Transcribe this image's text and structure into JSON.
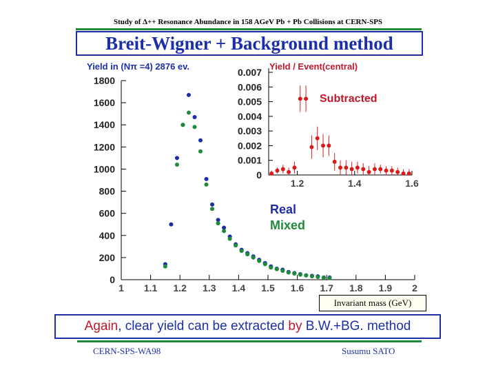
{
  "slide": {
    "top_title": "Study of Δ++ Resonance Abundance in 158 AGeV Pb + Pb Collisions at CERN-SPS",
    "headline": "Breit-Wigner + Background method",
    "xaxis_label": "Invariant mass (GeV)",
    "conclusion_red_1": "Again",
    "conclusion_blue_1": ", clear yield can be extracted ",
    "conclusion_red_2": "by",
    "conclusion_blue_2": " B.W.+BG. method",
    "footer_left": "CERN-SPS-WA98",
    "footer_right": "Susumu  SATO"
  },
  "colors": {
    "accent_blue": "#1c2fa8",
    "accent_red": "#c0182a",
    "rule_green": "#1f8a3a",
    "real_series": "#1c2fa8",
    "mixed_series": "#1f8a3a",
    "subtracted_series": "#d81c1c"
  },
  "chart_data": [
    {
      "type": "scatter",
      "title": "Yield in (Nπ =4) 2876 ev.",
      "xlim": [
        1,
        2
      ],
      "ylim": [
        0,
        1800
      ],
      "x_ticks": [
        1,
        1.1,
        1.2,
        1.3,
        1.4,
        1.5,
        1.6,
        1.7,
        1.8,
        1.9,
        2
      ],
      "x_tick_labels": [
        "1",
        "1.1",
        "1.2",
        "1.3",
        "1.4",
        "1.5",
        "1.6",
        "1.7",
        "1.8",
        "1.9",
        "2"
      ],
      "y_ticks": [
        0,
        200,
        400,
        600,
        800,
        1000,
        1200,
        1400,
        1600,
        1800
      ],
      "y_tick_labels": [
        "0",
        "200",
        "400",
        "600",
        "800",
        "1000",
        "1200",
        "1400",
        "1600",
        "1800"
      ],
      "legend_placement": "center-right",
      "series": [
        {
          "name": "Real",
          "x": [
            1.15,
            1.17,
            1.19,
            1.21,
            1.23,
            1.25,
            1.27,
            1.29,
            1.31,
            1.33,
            1.35,
            1.37,
            1.39,
            1.41,
            1.43,
            1.45,
            1.47,
            1.49,
            1.51,
            1.53,
            1.55,
            1.57,
            1.59,
            1.61,
            1.63,
            1.65,
            1.67,
            1.69,
            1.71
          ],
          "y": [
            140,
            500,
            1100,
            1400,
            1670,
            1470,
            1260,
            910,
            680,
            540,
            470,
            390,
            320,
            270,
            240,
            210,
            180,
            150,
            120,
            100,
            90,
            70,
            60,
            50,
            40,
            35,
            30,
            20,
            20
          ]
        },
        {
          "name": "Mixed",
          "x": [
            1.15,
            1.19,
            1.21,
            1.23,
            1.25,
            1.27,
            1.29,
            1.31,
            1.33,
            1.35,
            1.37,
            1.39,
            1.41,
            1.43,
            1.45,
            1.47,
            1.49,
            1.51,
            1.53,
            1.55,
            1.57,
            1.59,
            1.61,
            1.63,
            1.65,
            1.67,
            1.69,
            1.71
          ],
          "y": [
            120,
            1040,
            1400,
            1510,
            1380,
            1160,
            860,
            640,
            510,
            440,
            370,
            310,
            260,
            230,
            200,
            170,
            140,
            110,
            95,
            80,
            65,
            55,
            45,
            38,
            30,
            25,
            18,
            15
          ]
        }
      ]
    },
    {
      "type": "scatter",
      "title": "Yield / Event(central)",
      "annotation": "Subtracted",
      "xlim": [
        1.1,
        1.6
      ],
      "ylim": [
        0,
        0.007
      ],
      "x_ticks": [
        1.2,
        1.4,
        1.6
      ],
      "x_tick_labels": [
        "1.2",
        "1.4",
        "1.6"
      ],
      "y_ticks": [
        0,
        0.001,
        0.002,
        0.003,
        0.004,
        0.005,
        0.006,
        0.007
      ],
      "y_tick_labels": [
        "0",
        "0.001",
        "0.002",
        "0.003",
        "0.004",
        "0.005",
        "0.006",
        "0.007"
      ],
      "series": [
        {
          "name": "Subtracted",
          "x": [
            1.11,
            1.13,
            1.15,
            1.17,
            1.19,
            1.21,
            1.23,
            1.25,
            1.27,
            1.29,
            1.31,
            1.33,
            1.35,
            1.37,
            1.39,
            1.41,
            1.43,
            1.45,
            1.47,
            1.49,
            1.51,
            1.53,
            1.55,
            1.57,
            1.59
          ],
          "y": [
            0.0001,
            0.0003,
            0.0004,
            0.0002,
            0.0005,
            0.0052,
            0.0052,
            0.0019,
            0.0025,
            0.002,
            0.002,
            0.0009,
            0.0005,
            0.0005,
            0.0004,
            0.0005,
            0.0004,
            0.0002,
            0.0004,
            0.0004,
            0.0003,
            0.0003,
            0.0002,
            0.0001,
            0.0001
          ],
          "err": [
            0.0002,
            0.0002,
            0.0003,
            0.0003,
            0.0004,
            0.0009,
            0.0009,
            0.0008,
            0.0008,
            0.0008,
            0.0007,
            0.0006,
            0.0005,
            0.0005,
            0.0005,
            0.0004,
            0.0004,
            0.0004,
            0.0004,
            0.0003,
            0.0003,
            0.0003,
            0.0003,
            0.0003,
            0.0003
          ]
        }
      ]
    }
  ]
}
